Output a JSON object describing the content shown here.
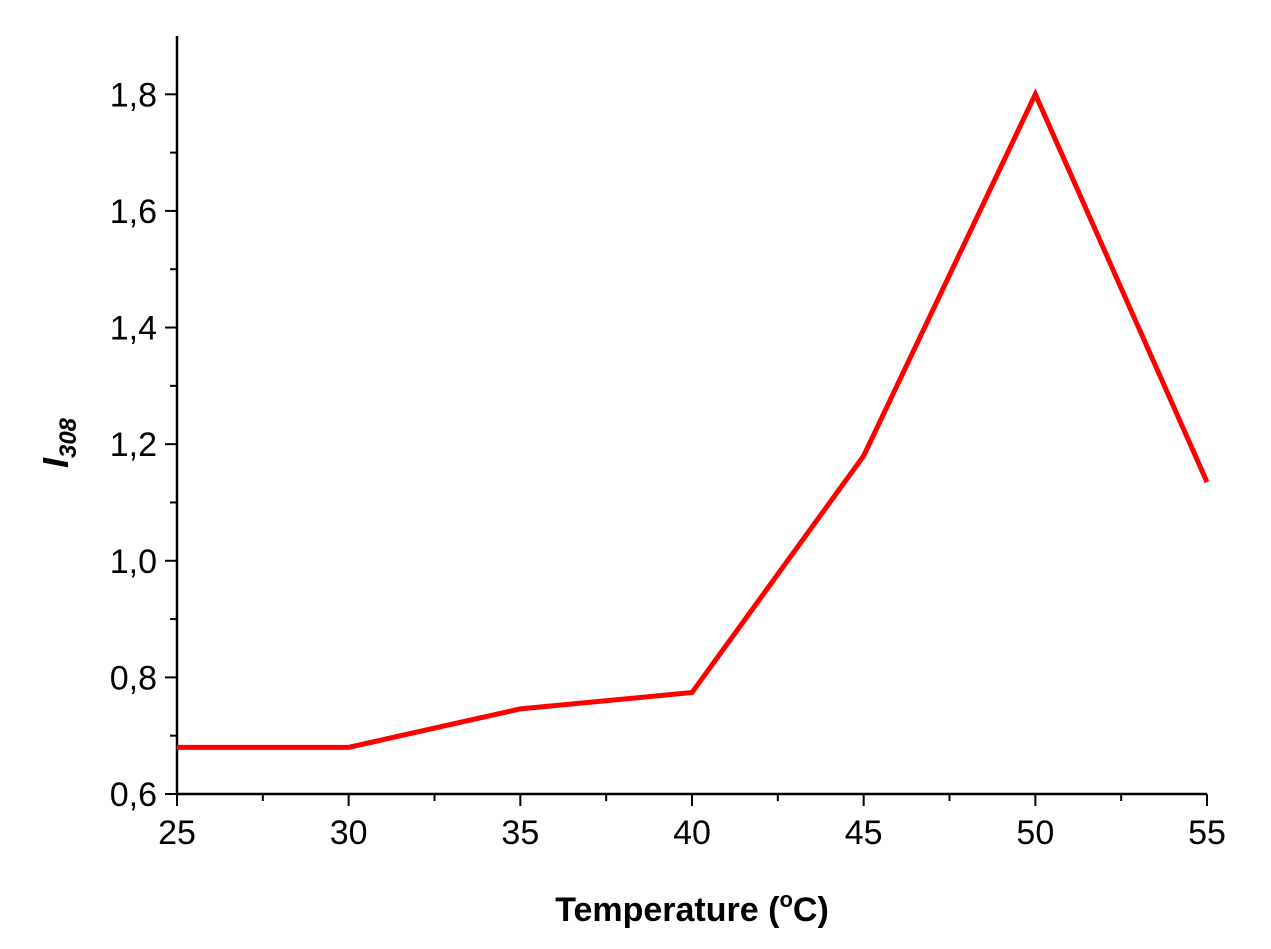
{
  "chart_data": {
    "type": "line",
    "title": "",
    "xlabel": "Temperature (°C)",
    "xlabel_parts": {
      "prefix": "Temperature (",
      "superscript": "o",
      "suffix": "C)"
    },
    "ylabel": "I308",
    "ylabel_parts": {
      "main": "I",
      "subscript": "308"
    },
    "xlim": [
      25,
      55
    ],
    "ylim": [
      0.6,
      1.9
    ],
    "x_ticks": [
      25,
      30,
      35,
      40,
      45,
      50,
      55
    ],
    "x_tick_labels": [
      "25",
      "30",
      "35",
      "40",
      "45",
      "50",
      "55"
    ],
    "y_ticks": [
      0.6,
      0.8,
      1.0,
      1.2,
      1.4,
      1.6,
      1.8
    ],
    "y_tick_labels": [
      "0,6",
      "0,8",
      "1,0",
      "1,2",
      "1,4",
      "1,6",
      "1,8"
    ],
    "grid": false,
    "series": [
      {
        "color": "#ff0000",
        "x": [
          25,
          30,
          35,
          40,
          45,
          50,
          55
        ],
        "y": [
          0.68,
          0.68,
          0.746,
          0.774,
          1.18,
          1.8,
          1.135
        ]
      }
    ]
  }
}
